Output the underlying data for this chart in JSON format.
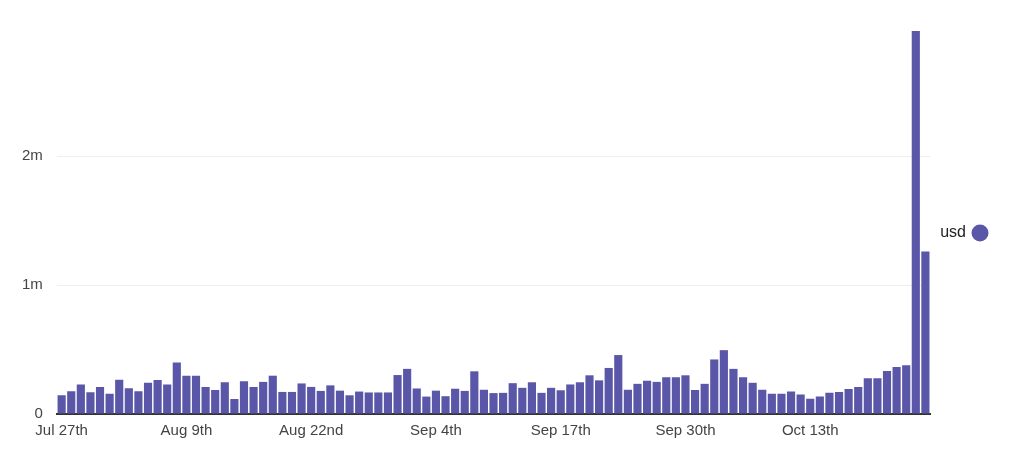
{
  "chart_data": {
    "type": "bar",
    "categories": [
      "Jul 27th",
      null,
      null,
      null,
      null,
      null,
      null,
      null,
      null,
      null,
      null,
      null,
      null,
      "Aug 9th",
      null,
      null,
      null,
      null,
      null,
      null,
      null,
      null,
      null,
      null,
      null,
      null,
      "Aug 22nd",
      null,
      null,
      null,
      null,
      null,
      null,
      null,
      null,
      null,
      null,
      null,
      null,
      "Sep 4th",
      null,
      null,
      null,
      null,
      null,
      null,
      null,
      null,
      null,
      null,
      null,
      null,
      "Sep 17th",
      null,
      null,
      null,
      null,
      null,
      null,
      null,
      null,
      null,
      null,
      null,
      null,
      "Sep 30th",
      null,
      null,
      null,
      null,
      null,
      null,
      null,
      null,
      null,
      null,
      null,
      null,
      "Oct 13th",
      null,
      null,
      null,
      null,
      null,
      null,
      null,
      null,
      null,
      null,
      null,
      null
    ],
    "series": [
      {
        "name": "usd",
        "color": "#5a56a8",
        "values": [
          145000,
          176000,
          229000,
          169000,
          210000,
          157000,
          266000,
          200000,
          176000,
          242000,
          263000,
          229000,
          399000,
          297000,
          297000,
          210000,
          186000,
          246000,
          116000,
          254000,
          210000,
          249000,
          297000,
          171000,
          171000,
          237000,
          210000,
          179000,
          222000,
          181000,
          145000,
          174000,
          167000,
          167000,
          167000,
          302000,
          350000,
          198000,
          135000,
          181000,
          138000,
          196000,
          179000,
          331000,
          188000,
          162000,
          164000,
          239000,
          203000,
          246000,
          164000,
          203000,
          184000,
          229000,
          246000,
          300000,
          261000,
          357000,
          457000,
          188000,
          234000,
          258000,
          249000,
          285000,
          285000,
          300000,
          186000,
          234000,
          423000,
          495000,
          350000,
          285000,
          242000,
          188000,
          157000,
          157000,
          174000,
          152000,
          118000,
          135000,
          164000,
          171000,
          193000,
          210000,
          278000,
          278000,
          333000,
          365000,
          379000,
          2970000,
          1260000
        ]
      }
    ],
    "ylim": [
      0,
      2970000
    ],
    "yticks": [
      0,
      {
        "value": 1000000,
        "label": "1m"
      },
      {
        "value": 2000000,
        "label": "2m"
      }
    ],
    "grid": "y",
    "legend": "right"
  }
}
